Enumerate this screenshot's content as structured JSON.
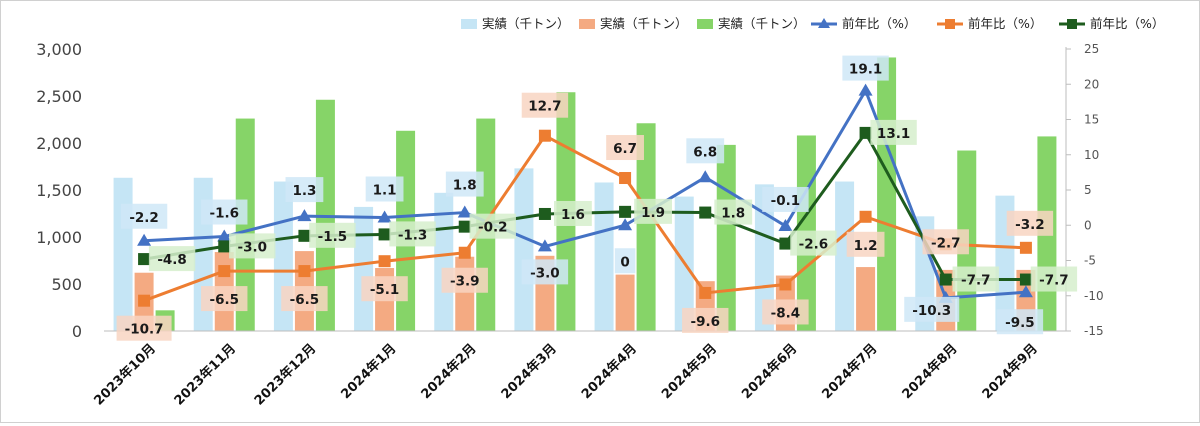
{
  "chart_data": {
    "type": "bar",
    "combo": "bar+line (dual axis)",
    "categories": [
      "2023年10月",
      "2023年11月",
      "2023年12月",
      "2024年1月",
      "2024年2月",
      "2024年3月",
      "2024年4月",
      "2024年5月",
      "2024年6月",
      "2024年7月",
      "2024年8月",
      "2024年9月"
    ],
    "bar_series": [
      {
        "name": "実績（千トン）",
        "color": "#c5e5f5",
        "values": [
          1630,
          1630,
          1590,
          1320,
          1470,
          1730,
          1580,
          1430,
          1560,
          1590,
          1220,
          1440
        ]
      },
      {
        "name": "実績（千トン）",
        "color": "#f4aa82",
        "values": [
          620,
          840,
          850,
          670,
          790,
          800,
          600,
          530,
          590,
          680,
          650,
          650
        ]
      },
      {
        "name": "実績（千トン）",
        "color": "#86d468",
        "values": [
          220,
          2260,
          2460,
          2130,
          2260,
          2540,
          2210,
          1980,
          2080,
          2910,
          1920,
          2070
        ]
      }
    ],
    "line_series": [
      {
        "name": "前年比（%）",
        "color": "#4472c4",
        "marker": "triangle",
        "values": [
          -2.2,
          -1.6,
          1.3,
          1.1,
          1.8,
          -3.0,
          0,
          6.8,
          -0.1,
          19.1,
          -10.3,
          -9.5
        ],
        "labels": [
          "-2.2",
          "-1.6",
          "1.3",
          "1.1",
          "1.8",
          "-3.0",
          "0",
          "6.8",
          "-0.1",
          "19.1",
          "-10.3",
          "-9.5"
        ]
      },
      {
        "name": "前年比（%）",
        "color": "#ed7d31",
        "marker": "square",
        "values": [
          -10.7,
          -6.5,
          -6.5,
          -5.1,
          -3.9,
          12.7,
          6.7,
          -9.6,
          -8.4,
          1.2,
          -2.7,
          -3.2
        ],
        "labels": [
          "-10.7",
          "-6.5",
          "-6.5",
          "-5.1",
          "-3.9",
          "12.7",
          "6.7",
          "-9.6",
          "-8.4",
          "1.2",
          "-2.7",
          "-3.2"
        ]
      },
      {
        "name": "前年比（%）",
        "color": "#1e5c1e",
        "marker": "square",
        "values": [
          -4.8,
          -3.0,
          -1.5,
          -1.3,
          -0.2,
          1.6,
          1.9,
          1.8,
          -2.6,
          13.1,
          -7.7,
          -7.7
        ],
        "labels": [
          "-4.8",
          "-3.0",
          "-1.5",
          "-1.3",
          "-0.2",
          "1.6",
          "1.9",
          "1.8",
          "-2.6",
          "13.1",
          "-7.7",
          "-7.7"
        ]
      }
    ],
    "y_left": {
      "ylim": [
        0,
        3000
      ],
      "ticks": [
        0,
        500,
        1000,
        1500,
        2000,
        2500,
        3000
      ],
      "tick_labels": [
        "0",
        "500",
        "1,000",
        "1,500",
        "2,000",
        "2,500",
        "3,000"
      ]
    },
    "y_right": {
      "ylim": [
        -15,
        25
      ],
      "ticks": [
        -15,
        -10,
        -5,
        0,
        5,
        10,
        15,
        20,
        25
      ],
      "tick_labels": [
        "-15",
        "-10",
        "-5",
        "0",
        "5",
        "10",
        "15",
        "20",
        "25"
      ]
    },
    "grid": false,
    "legend": "top-right",
    "title": "",
    "xlabel": "",
    "ylabel": ""
  }
}
